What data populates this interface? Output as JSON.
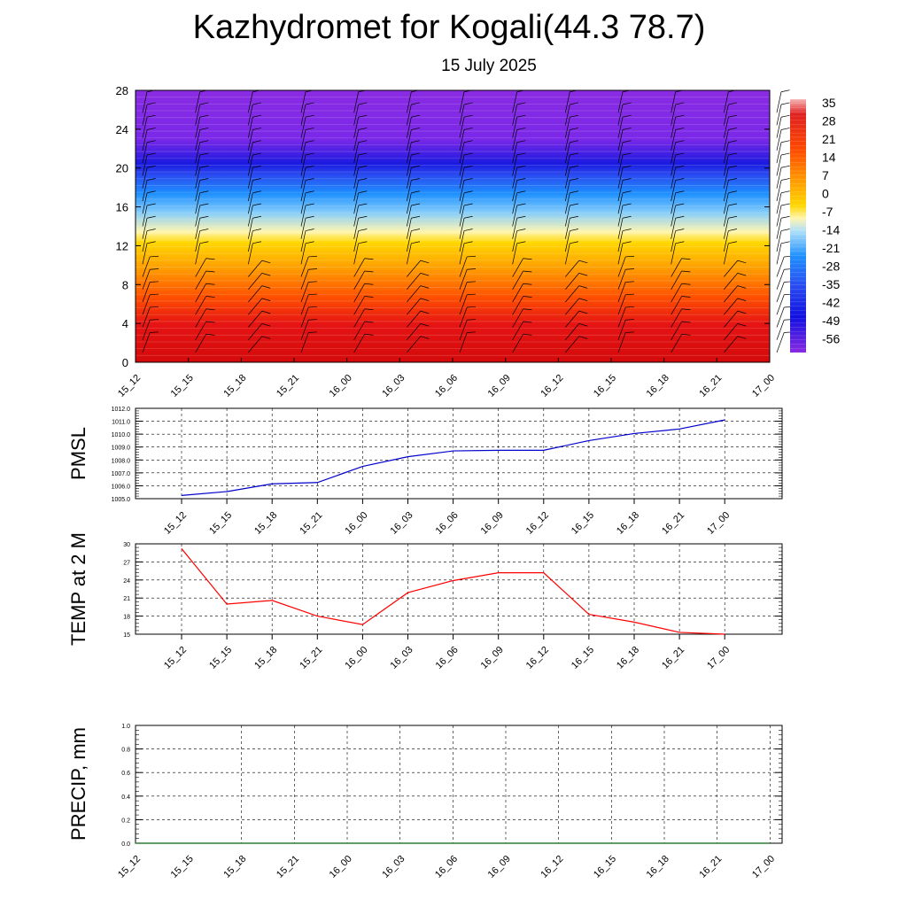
{
  "header": {
    "title": "Kazhydromet for Kogali(44.3 78.7)",
    "subtitle": "15 July 2025"
  },
  "chart_data": [
    {
      "type": "heatmap",
      "name": "Temperature by level",
      "x_tick_labels": [
        "15_12",
        "15_15",
        "15_18",
        "15_21",
        "16_00",
        "16_03",
        "16_06",
        "16_09",
        "16_12",
        "16_15",
        "16_18",
        "16_21",
        "17_00"
      ],
      "y_ticks": [
        0,
        4,
        8,
        12,
        16,
        20,
        24,
        28
      ],
      "ylim": [
        0,
        28
      ],
      "colorbar_labels": [
        "35",
        "28",
        "21",
        "14",
        "7",
        "0",
        "-7",
        "-14",
        "-21",
        "-28",
        "-35",
        "-42",
        "-49",
        "-56"
      ],
      "overlay": "wind barbs"
    },
    {
      "type": "line",
      "ylabel": "PMSL",
      "x_tick_labels": [
        "15_12",
        "15_15",
        "15_18",
        "15_21",
        "16_00",
        "16_03",
        "16_06",
        "16_09",
        "16_12",
        "16_15",
        "16_18",
        "16_21",
        "17_00"
      ],
      "y_tick_labels": [
        "1005.0",
        "1006.0",
        "1007.0",
        "1008.0",
        "1009.0",
        "1010.0",
        "1011.0",
        "1012.0"
      ],
      "ylim": [
        1005,
        1012
      ],
      "line_color": "#0000cc",
      "values": [
        1005.25,
        1005.55,
        1006.15,
        1006.25,
        1007.5,
        1008.25,
        1008.7,
        1008.75,
        1008.75,
        1009.5,
        1010.05,
        1010.4,
        1011.1
      ]
    },
    {
      "type": "line",
      "ylabel": "TEMP at 2 M",
      "x_tick_labels": [
        "15_12",
        "15_15",
        "15_18",
        "15_21",
        "16_00",
        "16_03",
        "16_06",
        "16_09",
        "16_12",
        "16_15",
        "16_18",
        "16_21",
        "17_00"
      ],
      "y_tick_labels": [
        "15",
        "18",
        "21",
        "24",
        "27",
        "30"
      ],
      "ylim": [
        15,
        30
      ],
      "line_color": "#ff0000",
      "values": [
        29.2,
        20.0,
        20.6,
        18.0,
        16.6,
        21.9,
        23.9,
        25.2,
        25.2,
        18.3,
        17.0,
        15.3,
        15.0
      ]
    },
    {
      "type": "line",
      "ylabel": "PRECIP, mm",
      "x_tick_labels": [
        "15_12",
        "15_15",
        "15_18",
        "15_21",
        "16_00",
        "16_03",
        "16_06",
        "16_09",
        "16_12",
        "16_15",
        "16_18",
        "16_21",
        "17_00"
      ],
      "y_tick_labels": [
        "0.0",
        "0.2",
        "0.4",
        "0.6",
        "0.8",
        "1.0"
      ],
      "ylim": [
        0,
        1
      ],
      "line_color": "#2e7d32",
      "values": [
        0,
        0,
        0,
        0,
        0,
        0,
        0,
        0,
        0,
        0,
        0,
        0,
        0
      ]
    }
  ]
}
